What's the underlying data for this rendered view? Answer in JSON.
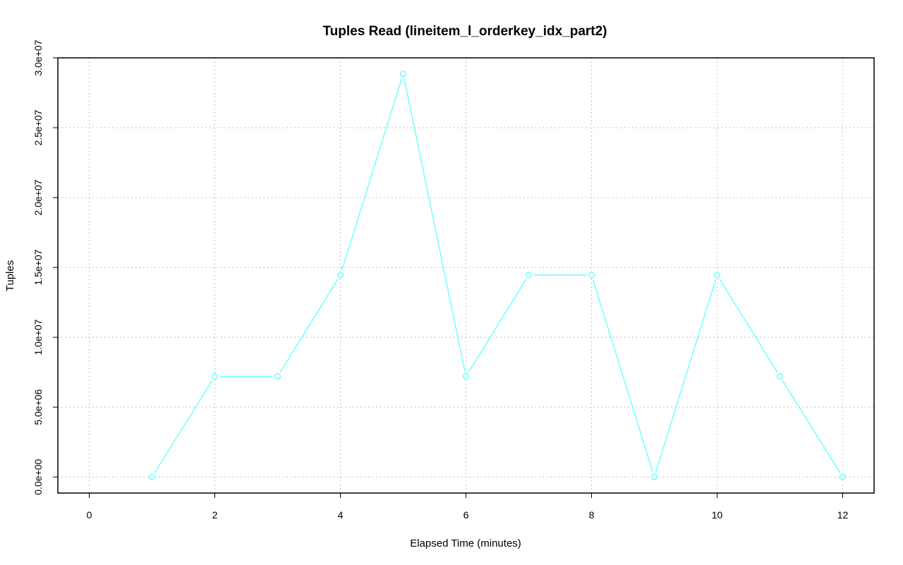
{
  "chart_data": {
    "type": "line",
    "title": "Tuples Read (lineitem_l_orderkey_idx_part2)",
    "xlabel": "Elapsed Time (minutes)",
    "ylabel": "Tuples",
    "xlim": [
      -0.5,
      12.5
    ],
    "ylim": [
      -1150000,
      30000000
    ],
    "x_ticks": [
      0,
      2,
      4,
      6,
      8,
      10,
      12
    ],
    "x_tick_labels": [
      "0",
      "2",
      "4",
      "6",
      "8",
      "10",
      "12"
    ],
    "y_ticks": [
      0,
      5000000,
      10000000,
      15000000,
      20000000,
      25000000,
      30000000
    ],
    "y_tick_labels": [
      "0.0e+00",
      "5.0e+06",
      "1.0e+07",
      "1.5e+07",
      "2.0e+07",
      "2.5e+07",
      "3.0e+07"
    ],
    "grid": true,
    "series": [
      {
        "color": "#66ffff",
        "marker": "open-circle",
        "x": [
          1,
          2,
          3,
          4,
          5,
          6,
          7,
          8,
          9,
          10,
          11,
          12
        ],
        "values": [
          0,
          7200000,
          7200000,
          14450000,
          28850000,
          7200000,
          14450000,
          14450000,
          0,
          14450000,
          7200000,
          0
        ]
      }
    ]
  }
}
